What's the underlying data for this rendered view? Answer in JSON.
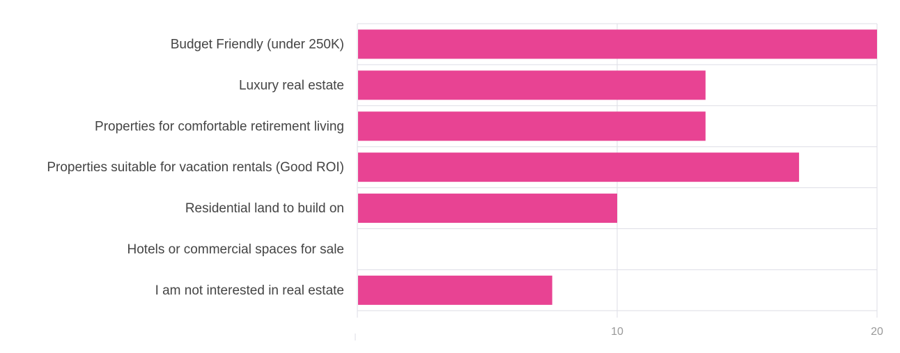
{
  "colors": {
    "bar": "#e84393",
    "grid": "#dedee6",
    "label": "#444444",
    "tick": "#999999"
  },
  "chart_data": {
    "type": "bar",
    "orientation": "horizontal",
    "title": "",
    "xlabel": "",
    "ylabel": "",
    "xlim": [
      0,
      20
    ],
    "xticks": [
      10,
      20
    ],
    "grid": true,
    "categories": [
      "Budget Friendly (under 250K)",
      "Luxury real estate",
      "Properties for comfortable retirement living",
      "Properties suitable for vacation rentals (Good ROI)",
      "Residential land to build on",
      "Hotels or commercial spaces for sale",
      "I am not interested in real estate"
    ],
    "values": [
      20,
      13.4,
      13.4,
      17,
      10,
      0,
      7.5
    ]
  }
}
